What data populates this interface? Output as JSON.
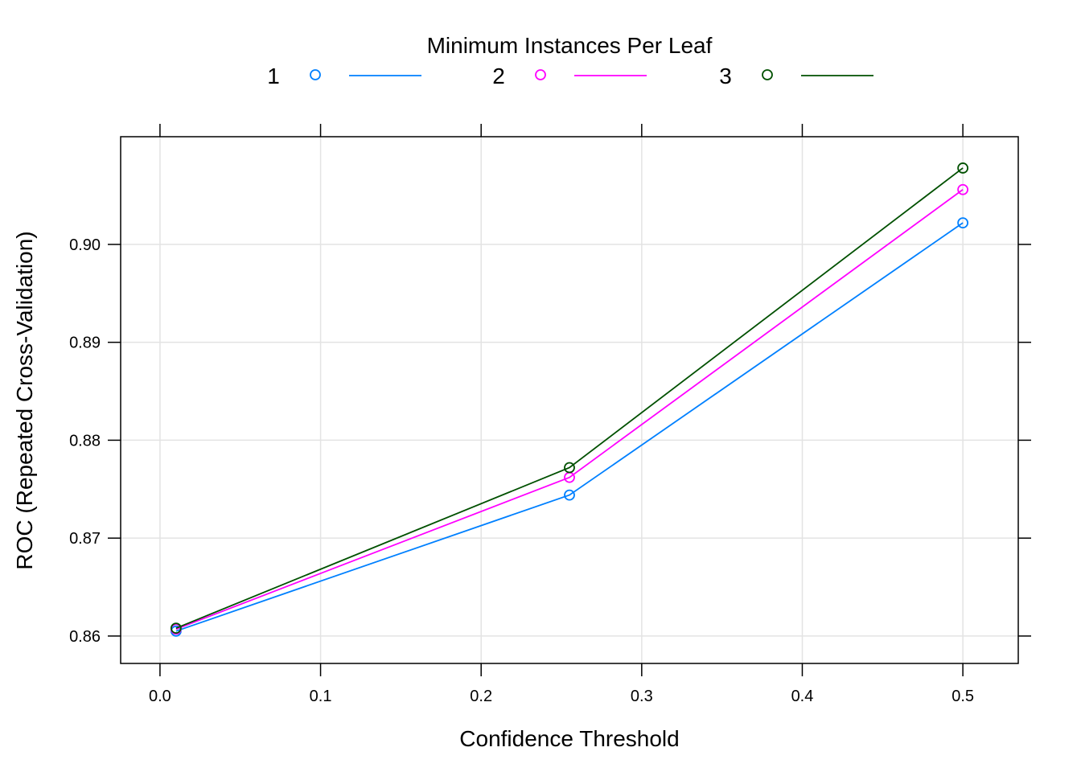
{
  "chart_data": {
    "type": "line",
    "title": "",
    "xlabel": "Confidence Threshold",
    "ylabel": "ROC (Repeated Cross-Validation)",
    "legend_title": "Minimum Instances Per Leaf",
    "legend_position": "top",
    "grid": true,
    "xlim": [
      -0.0245,
      0.5345
    ],
    "ylim": [
      0.8572,
      0.911
    ],
    "x_ticks": [
      "0.0",
      "0.1",
      "0.2",
      "0.3",
      "0.4",
      "0.5"
    ],
    "x_tick_values": [
      0.0,
      0.1,
      0.2,
      0.3,
      0.4,
      0.5
    ],
    "y_ticks": [
      "0.86",
      "0.87",
      "0.88",
      "0.89",
      "0.90"
    ],
    "y_tick_values": [
      0.86,
      0.87,
      0.88,
      0.89,
      0.9
    ],
    "x": [
      0.01,
      0.255,
      0.5
    ],
    "series": [
      {
        "name": "1",
        "color": "#0080ff",
        "values": [
          0.8605,
          0.8744,
          0.9022
        ]
      },
      {
        "name": "2",
        "color": "#ff00ff",
        "values": [
          0.8607,
          0.8762,
          0.9056
        ]
      },
      {
        "name": "3",
        "color": "#005000",
        "values": [
          0.8608,
          0.8772,
          0.9078
        ]
      }
    ]
  }
}
